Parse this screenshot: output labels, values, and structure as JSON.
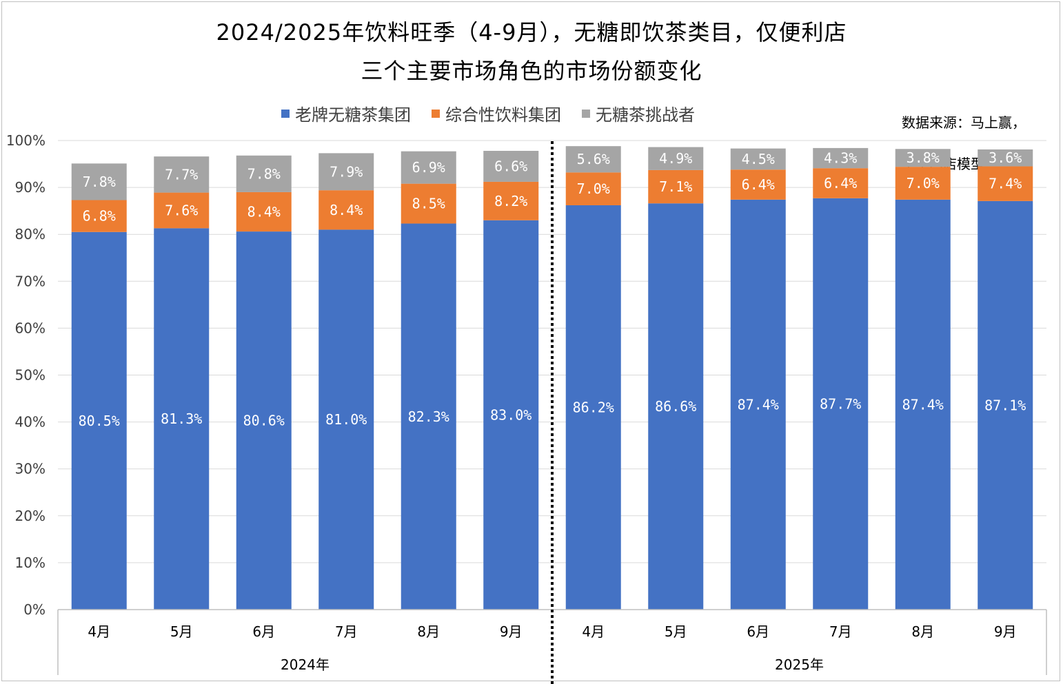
{
  "title_line1": "2024/2025年饮料旺季（4-9月），无糖即饮茶类目，仅便利店",
  "title_line2": "三个主要市场角色的市场份额变化",
  "source_line1": "数据来源：马上赢，",
  "source_line2": "全量门店模型",
  "colors": {
    "s0": "#4472c4",
    "s1": "#ed7d31",
    "s2": "#a5a5a5",
    "grid": "#d9d9d9",
    "axis": "#bfbfbf"
  },
  "chart_data": {
    "type": "bar",
    "stacked": true,
    "title": "2024/2025年饮料旺季（4-9月），无糖即饮茶类目，仅便利店 三个主要市场角色的市场份额变化",
    "categories": [
      "4月",
      "5月",
      "6月",
      "7月",
      "8月",
      "9月",
      "4月",
      "5月",
      "6月",
      "7月",
      "8月",
      "9月"
    ],
    "groups": [
      {
        "label": "2024年",
        "count": 6
      },
      {
        "label": "2025年",
        "count": 6
      }
    ],
    "series": [
      {
        "name": "老牌无糖茶集团",
        "values": [
          80.5,
          81.3,
          80.6,
          81.0,
          82.3,
          83.0,
          86.2,
          86.6,
          87.4,
          87.7,
          87.4,
          87.1
        ]
      },
      {
        "name": "综合性饮料集团",
        "values": [
          6.8,
          7.6,
          8.4,
          8.4,
          8.5,
          8.2,
          7.0,
          7.1,
          6.4,
          6.4,
          7.0,
          7.4
        ]
      },
      {
        "name": "无糖茶挑战者",
        "values": [
          7.8,
          7.7,
          7.8,
          7.9,
          6.9,
          6.6,
          5.6,
          4.9,
          4.5,
          4.3,
          3.8,
          3.6
        ]
      }
    ],
    "labels": [
      [
        "80.5%",
        "81.3%",
        "80.6%",
        "81.0%",
        "82.3%",
        "83.0%",
        "86.2%",
        "86.6%",
        "87.4%",
        "87.7%",
        "87.4%",
        "87.1%"
      ],
      [
        "6.8%",
        "7.6%",
        "8.4%",
        "8.4%",
        "8.5%",
        "8.2%",
        "7.0%",
        "7.1%",
        "6.4%",
        "6.4%",
        "7.0%",
        "7.4%"
      ],
      [
        "7.8%",
        "7.7%",
        "7.8%",
        "7.9%",
        "6.9%",
        "6.6%",
        "5.6%",
        "4.9%",
        "4.5%",
        "4.3%",
        "3.8%",
        "3.6%"
      ]
    ],
    "ylim": [
      0,
      100
    ],
    "yticks": [
      0,
      10,
      20,
      30,
      40,
      50,
      60,
      70,
      80,
      90,
      100
    ],
    "ytick_labels": [
      "0%",
      "10%",
      "20%",
      "30%",
      "40%",
      "50%",
      "60%",
      "70%",
      "80%",
      "90%",
      "100%"
    ],
    "legend_position": "top",
    "grid": true,
    "divider": "dotted vertical line between 2024年 and 2025年"
  }
}
